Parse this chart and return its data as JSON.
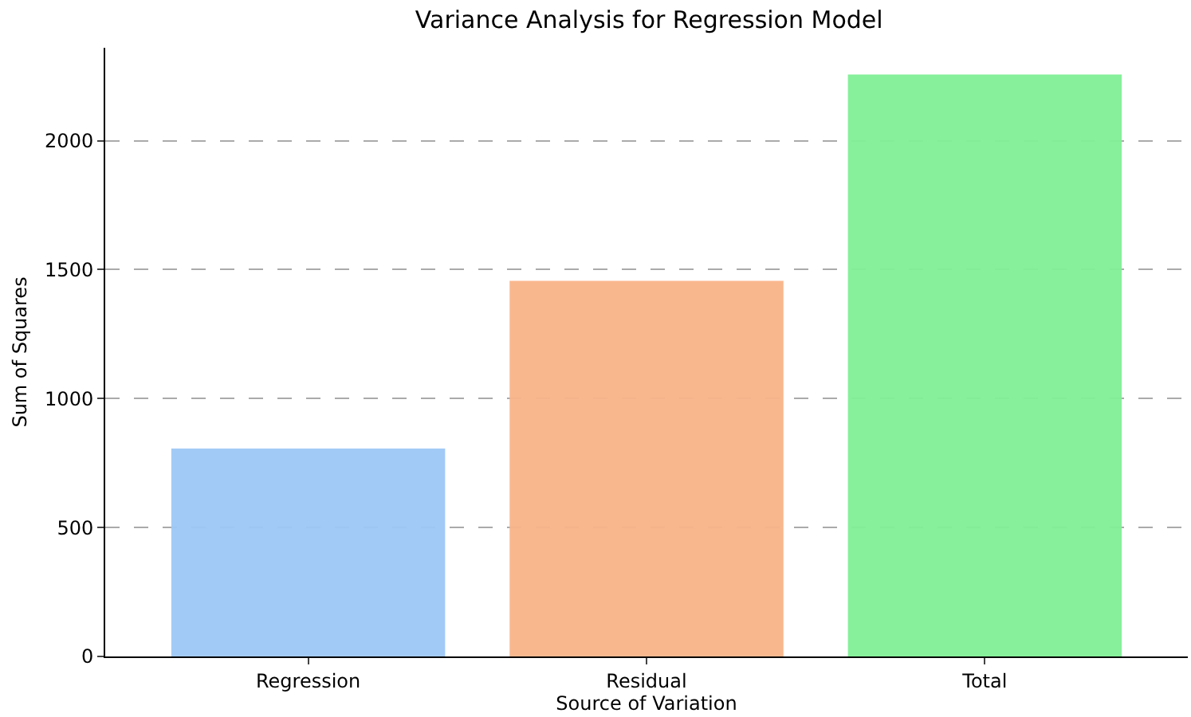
{
  "chart_data": {
    "type": "bar",
    "title": "Variance Analysis for Regression Model",
    "xlabel": "Source of Variation",
    "ylabel": "Sum of Squares",
    "categories": [
      "Regression",
      "Residual",
      "Total"
    ],
    "values": [
      800,
      1450,
      2250
    ],
    "colors": [
      "#9ec8f6",
      "#f9b489",
      "#80f095"
    ],
    "ylim": [
      0,
      2360
    ],
    "yticks": [
      0,
      500,
      1000,
      1500,
      2000
    ],
    "grid": "y"
  }
}
